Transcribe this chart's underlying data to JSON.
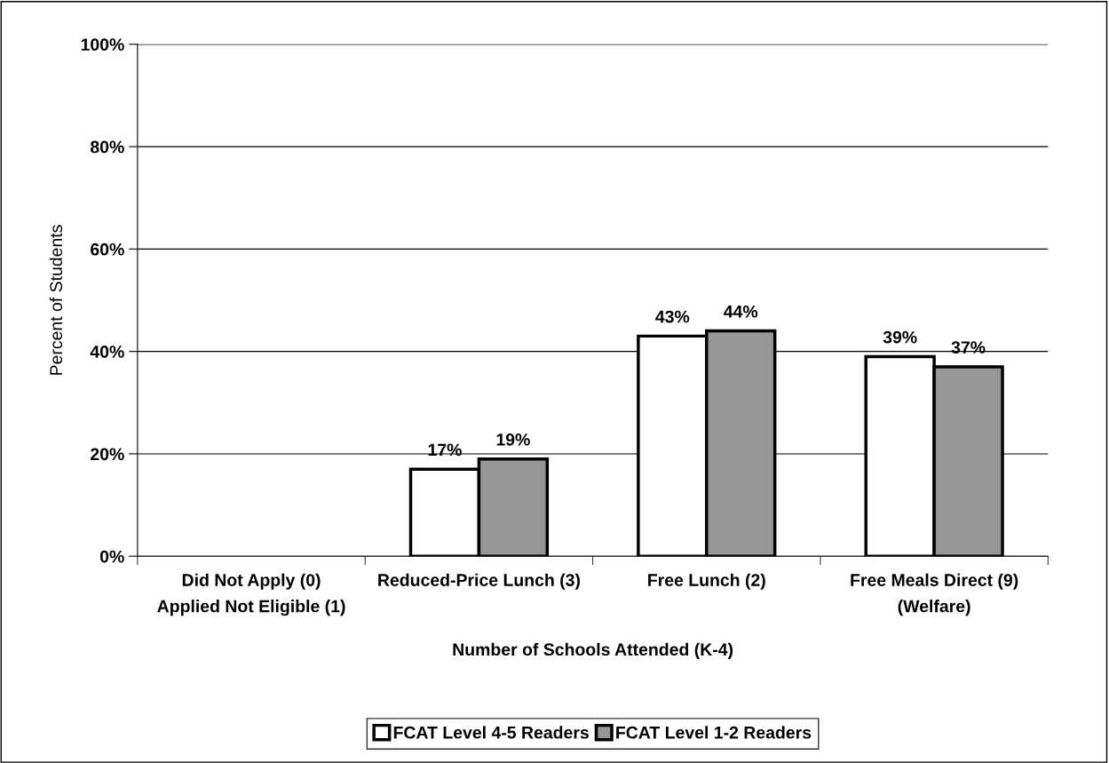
{
  "chart_data": {
    "type": "bar",
    "xlabel": "Number of Schools Attended (K-4)",
    "ylabel": "Percent of Students",
    "categories": [
      "Did Not Apply (0)\nApplied Not Eligible (1)",
      "Reduced-Price Lunch (3)",
      "Free Lunch (2)",
      "Free Meals Direct (9)\n(Welfare)"
    ],
    "series": [
      {
        "name": "FCAT Level 4-5 Readers",
        "color": "#ffffff",
        "values": [
          null,
          17,
          43,
          39
        ],
        "value_labels": [
          null,
          "17%",
          "43%",
          "39%"
        ]
      },
      {
        "name": "FCAT Level 1-2 Readers",
        "color": "#969696",
        "values": [
          null,
          19,
          44,
          37
        ],
        "value_labels": [
          null,
          "19%",
          "44%",
          "37%"
        ]
      }
    ],
    "ylim": [
      0,
      100
    ],
    "yticks": [
      {
        "value": 0,
        "label": "0%"
      },
      {
        "value": 20,
        "label": "20%"
      },
      {
        "value": 40,
        "label": "40%"
      },
      {
        "value": 60,
        "label": "60%"
      },
      {
        "value": 80,
        "label": "80%"
      },
      {
        "value": 100,
        "label": "100%"
      }
    ],
    "grid": "y",
    "legend": "bottom"
  }
}
